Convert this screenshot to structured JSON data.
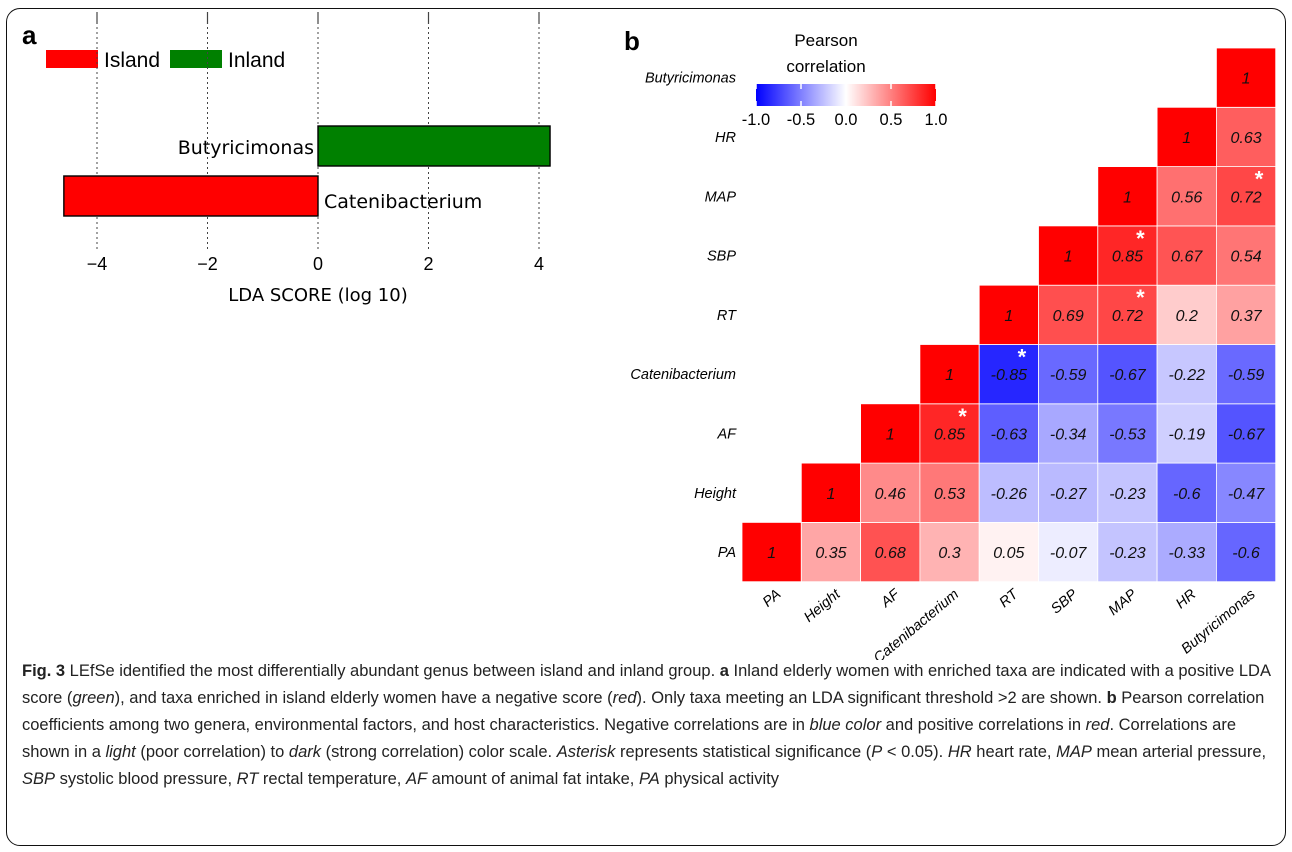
{
  "panel_a": {
    "letter": "a",
    "legend": [
      {
        "label": "Island",
        "color": "#ff0000"
      },
      {
        "label": "Inland",
        "color": "#008000"
      }
    ],
    "xlabel": "LDA SCORE (log 10)"
  },
  "panel_b": {
    "letter": "b",
    "colorbar_title_line1": "Pearson",
    "colorbar_title_line2": "correlation",
    "colorbar_ticks": [
      "-1.0",
      "-0.5",
      "0.0",
      "0.5",
      "1.0"
    ]
  },
  "chart_data": [
    {
      "type": "bar",
      "orientation": "horizontal",
      "categories": [
        "Butyricimonas",
        "Catenibacterium"
      ],
      "values": [
        4.2,
        -4.6
      ],
      "groups": [
        "Inland",
        "Island"
      ],
      "xlabel": "LDA SCORE (log 10)",
      "xticks": [
        -4,
        -2,
        0,
        2,
        4
      ],
      "xlim": [
        -5,
        4.5
      ],
      "grid": "vertical dotted",
      "legend": "top"
    },
    {
      "type": "heatmap",
      "title": "Pearson correlation",
      "variables": [
        "PA",
        "Height",
        "AF",
        "Catenibacterium",
        "RT",
        "SBP",
        "MAP",
        "HR",
        "Butyricimonas"
      ],
      "value_range": [
        -1.0,
        1.0
      ],
      "colors": {
        "low": "#0000ff",
        "mid": "#ffffff",
        "high": "#ff0000"
      },
      "cells": [
        {
          "row": "PA",
          "col": "PA",
          "value": 1,
          "label": "1"
        },
        {
          "row": "PA",
          "col": "Height",
          "value": 0.35,
          "label": "0.35"
        },
        {
          "row": "PA",
          "col": "AF",
          "value": 0.68,
          "label": "0.68"
        },
        {
          "row": "PA",
          "col": "Catenibacterium",
          "value": 0.3,
          "label": "0.3"
        },
        {
          "row": "PA",
          "col": "RT",
          "value": 0.05,
          "label": "0.05"
        },
        {
          "row": "PA",
          "col": "SBP",
          "value": -0.07,
          "label": "-0.07"
        },
        {
          "row": "PA",
          "col": "MAP",
          "value": -0.23,
          "label": "-0.23"
        },
        {
          "row": "PA",
          "col": "HR",
          "value": -0.33,
          "label": "-0.33"
        },
        {
          "row": "PA",
          "col": "Butyricimonas",
          "value": -0.6,
          "label": "-0.6"
        },
        {
          "row": "Height",
          "col": "Height",
          "value": 1,
          "label": "1"
        },
        {
          "row": "Height",
          "col": "AF",
          "value": 0.46,
          "label": "0.46"
        },
        {
          "row": "Height",
          "col": "Catenibacterium",
          "value": 0.53,
          "label": "0.53"
        },
        {
          "row": "Height",
          "col": "RT",
          "value": -0.26,
          "label": "-0.26"
        },
        {
          "row": "Height",
          "col": "SBP",
          "value": -0.27,
          "label": "-0.27"
        },
        {
          "row": "Height",
          "col": "MAP",
          "value": -0.23,
          "label": "-0.23"
        },
        {
          "row": "Height",
          "col": "HR",
          "value": -0.6,
          "label": "-0.6"
        },
        {
          "row": "Height",
          "col": "Butyricimonas",
          "value": -0.47,
          "label": "-0.47"
        },
        {
          "row": "AF",
          "col": "AF",
          "value": 1,
          "label": "1"
        },
        {
          "row": "AF",
          "col": "Catenibacterium",
          "value": 0.85,
          "label": "0.85",
          "significant": true
        },
        {
          "row": "AF",
          "col": "RT",
          "value": -0.63,
          "label": "-0.63"
        },
        {
          "row": "AF",
          "col": "SBP",
          "value": -0.34,
          "label": "-0.34"
        },
        {
          "row": "AF",
          "col": "MAP",
          "value": -0.53,
          "label": "-0.53"
        },
        {
          "row": "AF",
          "col": "HR",
          "value": -0.19,
          "label": "-0.19"
        },
        {
          "row": "AF",
          "col": "Butyricimonas",
          "value": -0.67,
          "label": "-0.67"
        },
        {
          "row": "Catenibacterium",
          "col": "Catenibacterium",
          "value": 1,
          "label": "1"
        },
        {
          "row": "Catenibacterium",
          "col": "RT",
          "value": -0.85,
          "label": "-0.85",
          "significant": true
        },
        {
          "row": "Catenibacterium",
          "col": "SBP",
          "value": -0.59,
          "label": "-0.59"
        },
        {
          "row": "Catenibacterium",
          "col": "MAP",
          "value": -0.67,
          "label": "-0.67"
        },
        {
          "row": "Catenibacterium",
          "col": "HR",
          "value": -0.22,
          "label": "-0.22"
        },
        {
          "row": "Catenibacterium",
          "col": "Butyricimonas",
          "value": -0.59,
          "label": "-0.59"
        },
        {
          "row": "RT",
          "col": "RT",
          "value": 1,
          "label": "1"
        },
        {
          "row": "RT",
          "col": "SBP",
          "value": 0.69,
          "label": "0.69"
        },
        {
          "row": "RT",
          "col": "MAP",
          "value": 0.72,
          "label": "0.72",
          "significant": true
        },
        {
          "row": "RT",
          "col": "HR",
          "value": 0.2,
          "label": "0.2"
        },
        {
          "row": "RT",
          "col": "Butyricimonas",
          "value": 0.37,
          "label": "0.37"
        },
        {
          "row": "SBP",
          "col": "SBP",
          "value": 1,
          "label": "1"
        },
        {
          "row": "SBP",
          "col": "MAP",
          "value": 0.85,
          "label": "0.85",
          "significant": true
        },
        {
          "row": "SBP",
          "col": "HR",
          "value": 0.67,
          "label": "0.67"
        },
        {
          "row": "SBP",
          "col": "Butyricimonas",
          "value": 0.54,
          "label": "0.54"
        },
        {
          "row": "MAP",
          "col": "MAP",
          "value": 1,
          "label": "1"
        },
        {
          "row": "MAP",
          "col": "HR",
          "value": 0.56,
          "label": "0.56"
        },
        {
          "row": "MAP",
          "col": "Butyricimonas",
          "value": 0.72,
          "label": "0.72",
          "significant": true
        },
        {
          "row": "HR",
          "col": "HR",
          "value": 1,
          "label": "1"
        },
        {
          "row": "HR",
          "col": "Butyricimonas",
          "value": 0.63,
          "label": "0.63"
        },
        {
          "row": "Butyricimonas",
          "col": "Butyricimonas",
          "value": 1,
          "label": "1"
        }
      ],
      "significance_marker": "*"
    }
  ],
  "caption": {
    "fig_label": "Fig. 3",
    "segments": [
      {
        "t": " LEfSe identified the most differentially abundant genus between island and inland group. ",
        "s": "n"
      },
      {
        "t": "a",
        "s": "b"
      },
      {
        "t": " Inland elderly women with enriched taxa are indicated with a positive LDA score (",
        "s": "n"
      },
      {
        "t": "green",
        "s": "i"
      },
      {
        "t": "), and taxa enriched in island elderly women have a negative score (",
        "s": "n"
      },
      {
        "t": "red",
        "s": "i"
      },
      {
        "t": "). Only taxa meeting an LDA significant threshold >2 are shown. ",
        "s": "n"
      },
      {
        "t": "b",
        "s": "b"
      },
      {
        "t": " Pearson correlation coefficients among two genera, environmental factors, and host characteristics. Negative correlations are in ",
        "s": "n"
      },
      {
        "t": "blue color",
        "s": "i"
      },
      {
        "t": " and positive correlations in ",
        "s": "n"
      },
      {
        "t": "red",
        "s": "i"
      },
      {
        "t": ". Correlations are shown in a ",
        "s": "n"
      },
      {
        "t": "light",
        "s": "i"
      },
      {
        "t": " (poor correlation) to ",
        "s": "n"
      },
      {
        "t": "dark",
        "s": "i"
      },
      {
        "t": " (strong correlation) color scale. ",
        "s": "n"
      },
      {
        "t": "Asterisk",
        "s": "i"
      },
      {
        "t": " represents statistical significance (",
        "s": "n"
      },
      {
        "t": "P",
        "s": "i"
      },
      {
        "t": " < 0.05). ",
        "s": "n"
      },
      {
        "t": "HR",
        "s": "i"
      },
      {
        "t": " heart rate, ",
        "s": "n"
      },
      {
        "t": "MAP",
        "s": "i"
      },
      {
        "t": " mean arterial pressure, ",
        "s": "n"
      },
      {
        "t": "SBP",
        "s": "i"
      },
      {
        "t": " systolic blood pressure, ",
        "s": "n"
      },
      {
        "t": "RT",
        "s": "i"
      },
      {
        "t": " rectal temperature, ",
        "s": "n"
      },
      {
        "t": "AF",
        "s": "i"
      },
      {
        "t": " amount of animal fat intake, ",
        "s": "n"
      },
      {
        "t": "PA",
        "s": "i"
      },
      {
        "t": " physical activity",
        "s": "n"
      }
    ]
  }
}
